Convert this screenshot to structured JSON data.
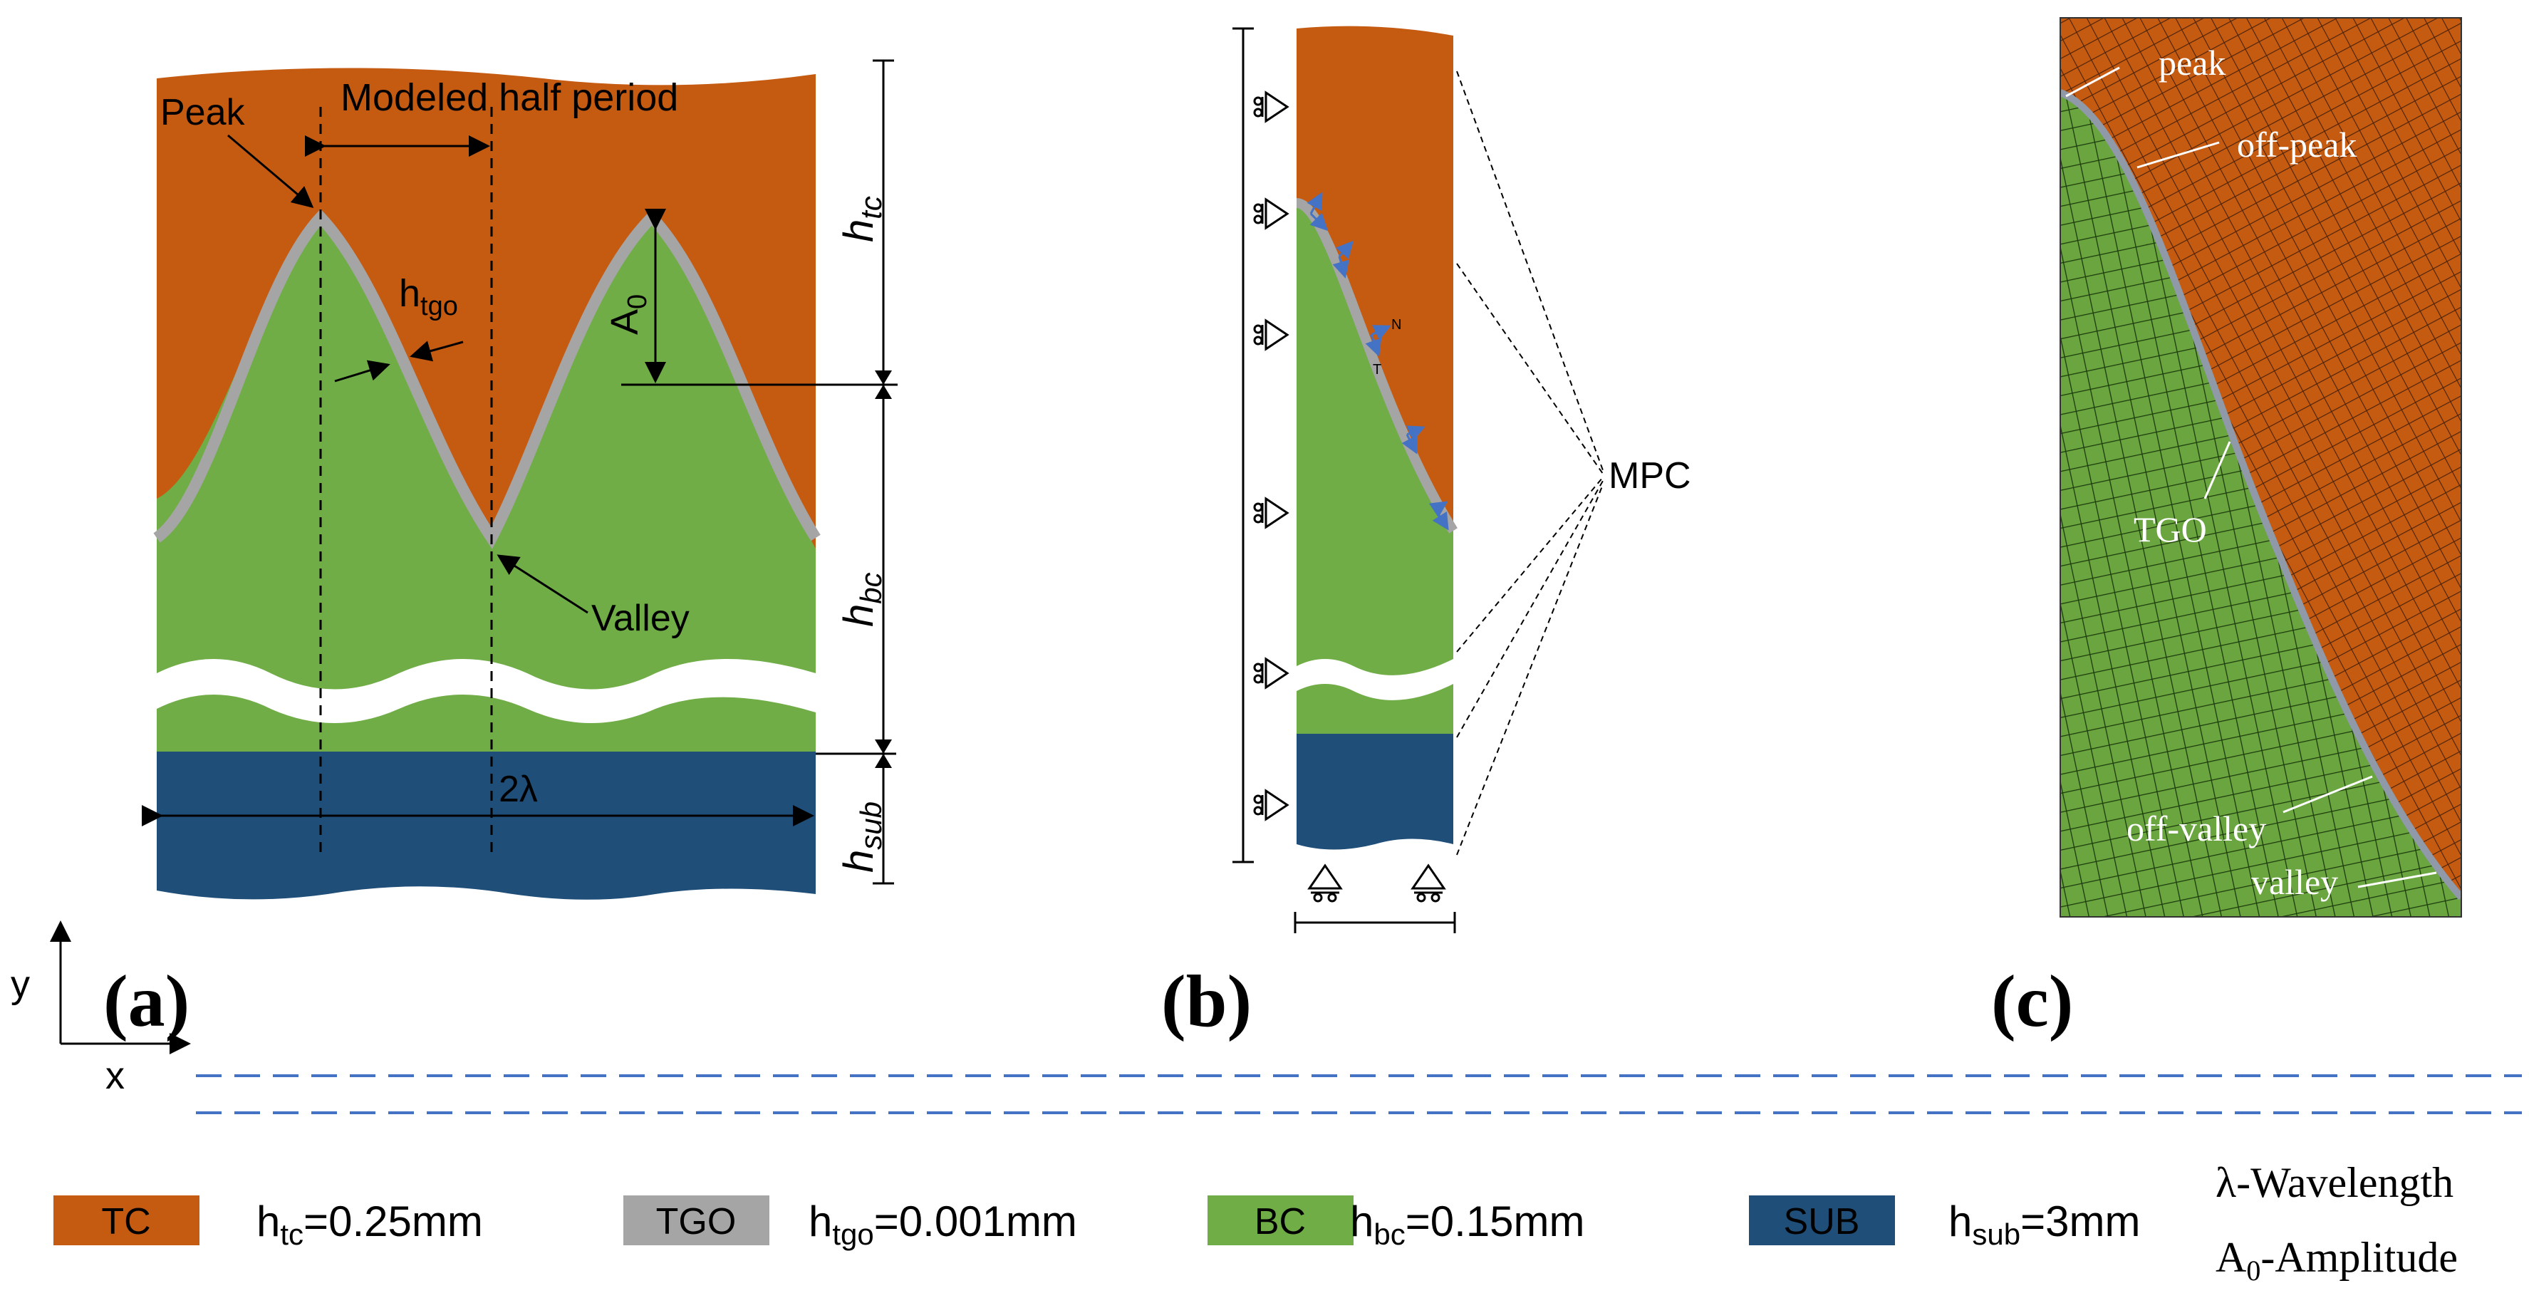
{
  "colors": {
    "tc": "#C55A11",
    "tgo": "#A5A5A5",
    "bc": "#70AD47",
    "sub": "#1F4E79",
    "arrow_blue": "#4472C4",
    "dash_blue": "#4472C4",
    "mesh_line": "#2a1a0a"
  },
  "panel_a": {
    "label": "(a)",
    "peak": "Peak",
    "modeled_half_period": "Modeled half period",
    "valley": "Valley",
    "h_tgo": "h",
    "h_tgo_sub": "tgo",
    "a0": "A",
    "a0_sub": "0",
    "wavelength": "2λ",
    "dim_tc": "h",
    "dim_tc_sub": "tc",
    "dim_bc": "h",
    "dim_bc_sub": "bc",
    "dim_sub": "h",
    "dim_sub_sub": "sub"
  },
  "axes": {
    "y": "y",
    "x": "x"
  },
  "panel_b": {
    "label": "(b)",
    "mpc": "MPC",
    "normal": "N",
    "tangent": "T"
  },
  "panel_c": {
    "label": "(c)",
    "peak": "peak",
    "off_peak": "off-peak",
    "tgo": "TGO",
    "off_valley": "off-valley",
    "valley": "valley"
  },
  "legend": {
    "items": [
      {
        "box": "TC",
        "h": "h",
        "sub": "tc",
        "value": "=0.25mm",
        "color_key": "tc"
      },
      {
        "box": "TGO",
        "h": "h",
        "sub": "tgo",
        "value": "=0.001mm",
        "color_key": "tgo"
      },
      {
        "box": "BC",
        "h": "h",
        "sub": "bc",
        "value": "=0.15mm",
        "color_key": "bc"
      },
      {
        "box": "SUB",
        "h": "h",
        "sub": "sub",
        "value": "=3mm",
        "color_key": "sub"
      }
    ],
    "wavelength_note": "λ-Wavelength",
    "amplitude_note_a": "A",
    "amplitude_note_sub": "0",
    "amplitude_note_rest": "-Amplitude"
  }
}
